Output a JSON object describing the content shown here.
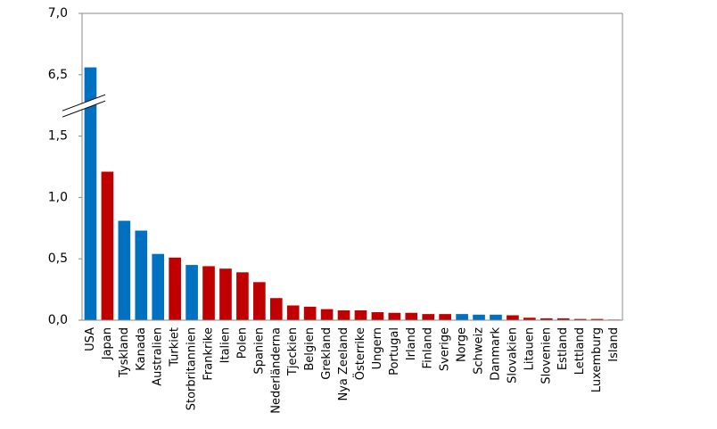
{
  "chart_data": {
    "type": "bar",
    "categories": [
      "USA",
      "Japan",
      "Tyskland",
      "Kanada",
      "Australien",
      "Turkiet",
      "Storbritannien",
      "Frankrike",
      "Italien",
      "Polen",
      "Spanien",
      "Nederländerna",
      "Tjeckien",
      "Belgien",
      "Grekland",
      "Nya Zeeland",
      "Österrike",
      "Ungern",
      "Portugal",
      "Irland",
      "Finland",
      "Sverige",
      "Norge",
      "Schweiz",
      "Danmark",
      "Slovakien",
      "Litauen",
      "Slovenien",
      "Estland",
      "Lettland",
      "Luxemburg",
      "Island"
    ],
    "values": [
      6.56,
      1.21,
      0.81,
      0.73,
      0.54,
      0.51,
      0.45,
      0.44,
      0.42,
      0.39,
      0.31,
      0.18,
      0.12,
      0.11,
      0.09,
      0.08,
      0.08,
      0.065,
      0.06,
      0.06,
      0.05,
      0.05,
      0.05,
      0.045,
      0.045,
      0.04,
      0.02,
      0.015,
      0.015,
      0.01,
      0.01,
      0.005
    ],
    "colors": [
      "#0070c0",
      "#c00000",
      "#0070c0",
      "#0070c0",
      "#0070c0",
      "#c00000",
      "#0070c0",
      "#c00000",
      "#c00000",
      "#c00000",
      "#c00000",
      "#c00000",
      "#c00000",
      "#c00000",
      "#c00000",
      "#c00000",
      "#c00000",
      "#c00000",
      "#c00000",
      "#c00000",
      "#c00000",
      "#c00000",
      "#0070c0",
      "#0070c0",
      "#0070c0",
      "#c00000",
      "#c00000",
      "#c00000",
      "#c00000",
      "#c00000",
      "#c00000",
      "#c00000"
    ],
    "ylim": [
      0,
      7
    ],
    "axis_break": [
      1.75,
      6.25
    ],
    "yticks": [
      {
        "value": 0,
        "label": "0,0"
      },
      {
        "value": 0.5,
        "label": "0,5"
      },
      {
        "value": 1,
        "label": "1,0"
      },
      {
        "value": 1.5,
        "label": "1,5"
      },
      {
        "value": 6.5,
        "label": "6,5"
      },
      {
        "value": 7,
        "label": "7,0"
      }
    ],
    "grid": false
  }
}
